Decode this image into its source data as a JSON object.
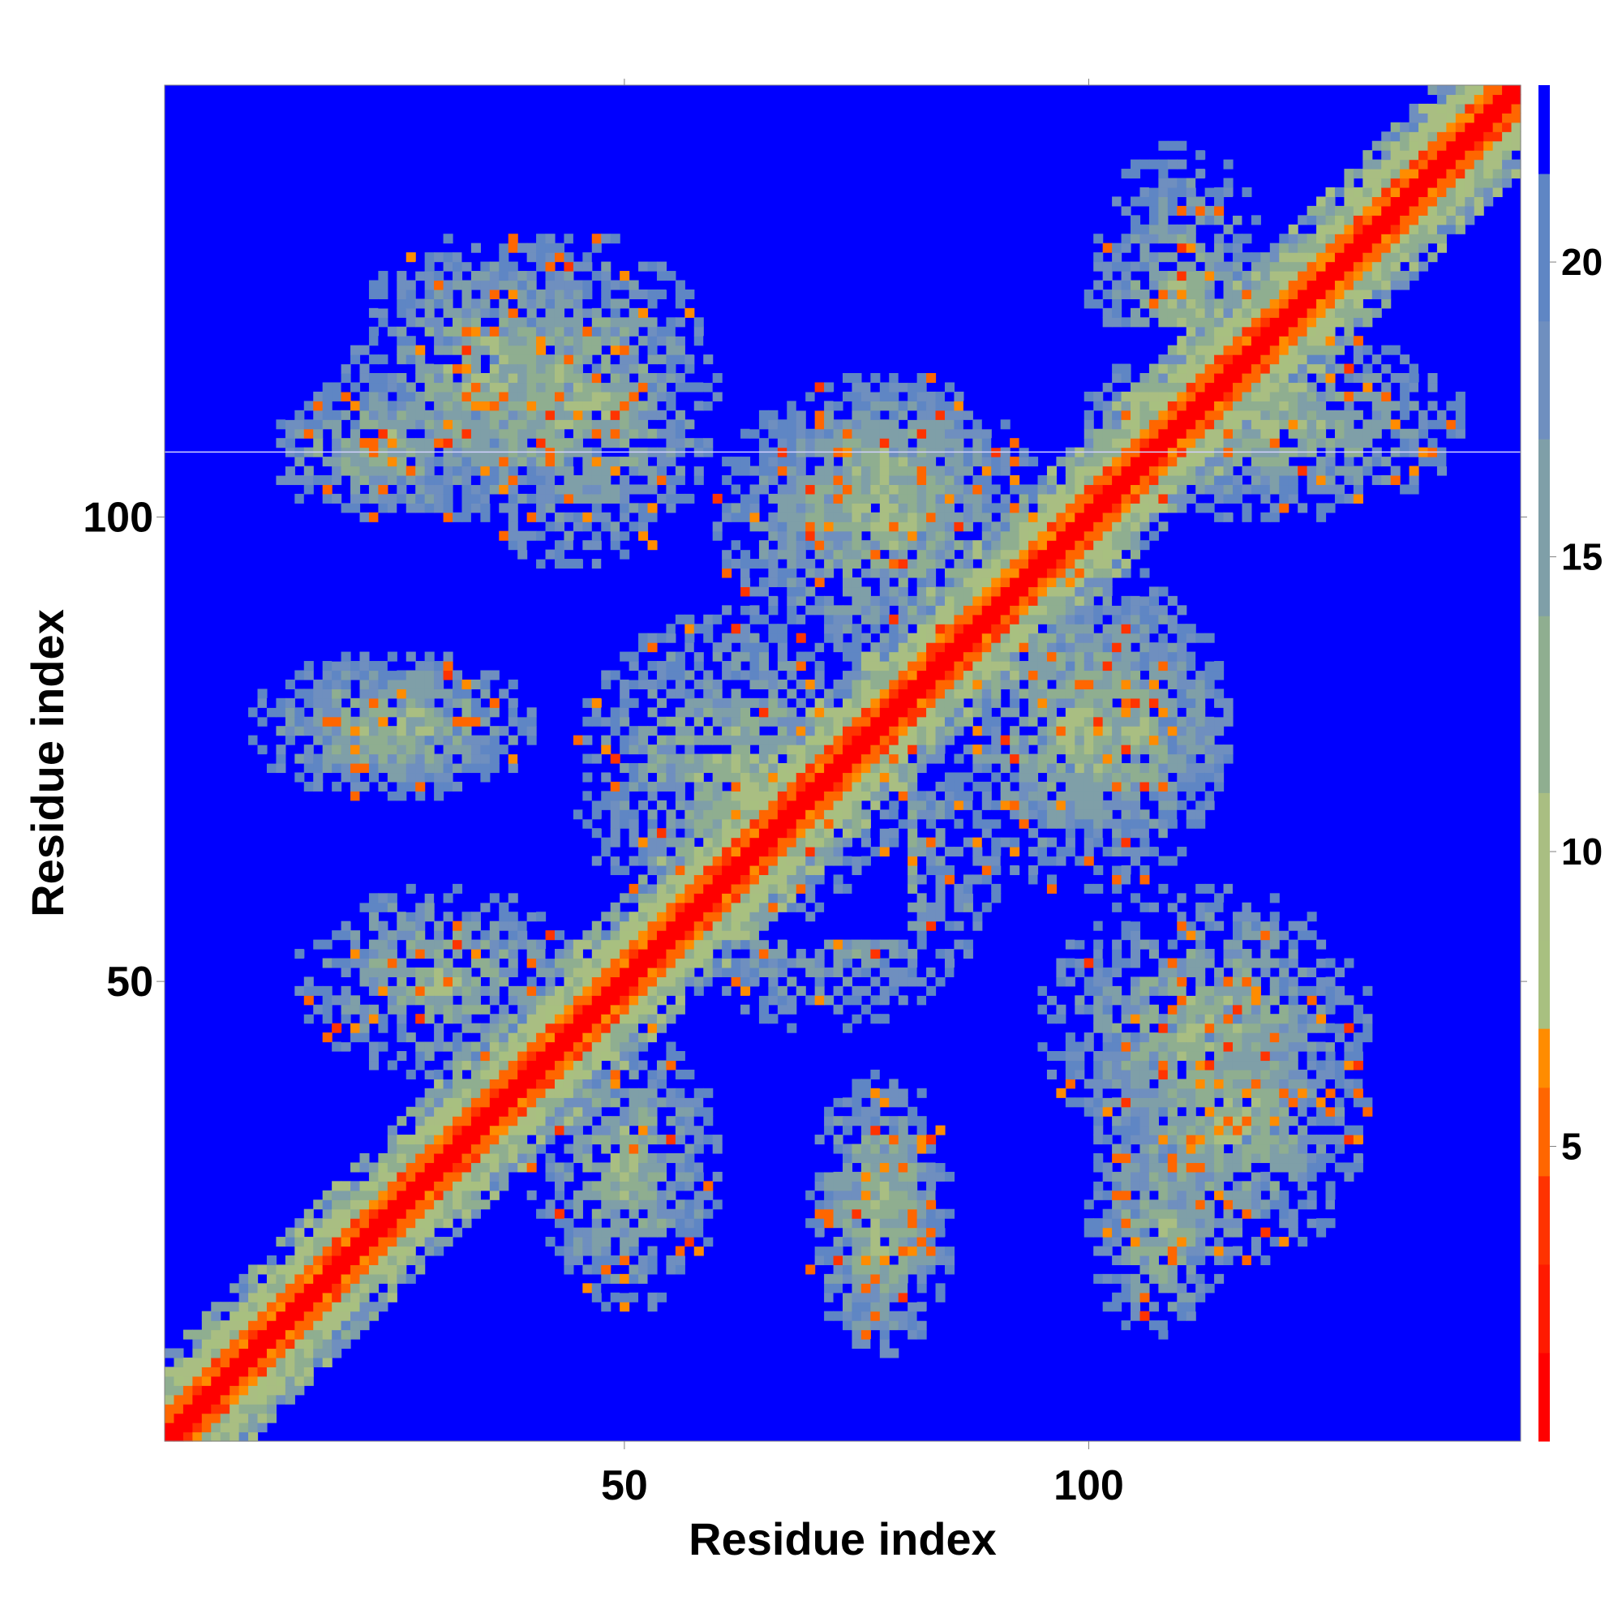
{
  "chart_data": {
    "type": "heatmap",
    "title": "",
    "xlabel": "Residue index",
    "ylabel": "Residue index",
    "n_residues": 146,
    "xlim": [
      0.5,
      146.5
    ],
    "ylim": [
      0.5,
      146.5
    ],
    "x_ticks": [
      50,
      100
    ],
    "y_ticks": [
      50,
      100
    ],
    "colorbar": {
      "ticks": [
        5,
        10,
        15,
        20
      ],
      "range": [
        0,
        23
      ],
      "bands": [
        {
          "from": 0,
          "to": 1.5,
          "color": "#ff0000"
        },
        {
          "from": 1.5,
          "to": 3,
          "color": "#ff1a00"
        },
        {
          "from": 3,
          "to": 4.5,
          "color": "#ff3300"
        },
        {
          "from": 4.5,
          "to": 6,
          "color": "#ff6600"
        },
        {
          "from": 6,
          "to": 7,
          "color": "#ff8c00"
        },
        {
          "from": 7,
          "to": 8.5,
          "color": "#a8c080"
        },
        {
          "from": 8.5,
          "to": 11,
          "color": "#a9be82"
        },
        {
          "from": 11,
          "to": 14,
          "color": "#8fae90"
        },
        {
          "from": 14,
          "to": 17,
          "color": "#7f9fa8"
        },
        {
          "from": 17,
          "to": 19,
          "color": "#6f8fbf"
        },
        {
          "from": 19,
          "to": 21.5,
          "color": "#5f86c4"
        },
        {
          "from": 21.5,
          "to": 23,
          "color": "#0000ff"
        }
      ]
    },
    "background_color": "#0000ff",
    "contact_regions": [
      {
        "x": [
          1,
          146
        ],
        "y": [
          1,
          146
        ],
        "width": 9,
        "note": "diagonal"
      },
      {
        "x": [
          20,
          50
        ],
        "y": [
          100,
          130
        ]
      },
      {
        "x": [
          65,
          90
        ],
        "y": [
          95,
          115
        ]
      },
      {
        "x": [
          10,
          35
        ],
        "y": [
          70,
          85
        ]
      },
      {
        "x": [
          45,
          80
        ],
        "y": [
          55,
          90
        ]
      },
      {
        "x": [
          85,
          115
        ],
        "y": [
          60,
          95
        ]
      },
      {
        "x": [
          95,
          130
        ],
        "y": [
          30,
          60
        ]
      },
      {
        "x": [
          70,
          85
        ],
        "y": [
          15,
          40
        ]
      },
      {
        "x": [
          100,
          115
        ],
        "y": [
          12,
          35
        ]
      },
      {
        "x": [
          15,
          45
        ],
        "y": [
          40,
          60
        ]
      },
      {
        "x": [
          100,
          140
        ],
        "y": [
          100,
          120
        ]
      }
    ]
  }
}
